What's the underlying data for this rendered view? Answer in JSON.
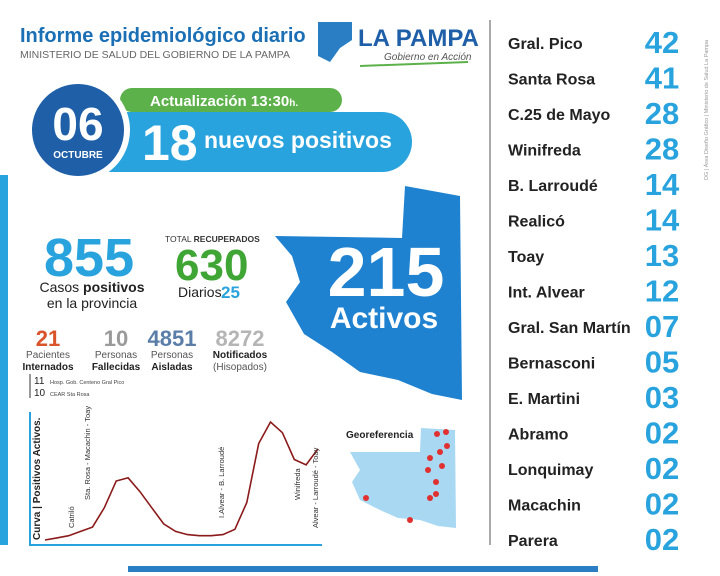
{
  "header": {
    "title": "Informe epidemiológico diario",
    "subtitle": "MINISTERIO DE SALUD DEL GOBIERNO DE LA PAMPA",
    "logo": "LA PAMPA",
    "logo_tagline": "Gobierno en Acción"
  },
  "date": {
    "day": "06",
    "month": "OCTUBRE"
  },
  "update": {
    "label": "Actualización 13:30",
    "suffix": "h."
  },
  "new_cases": {
    "value": "18",
    "label": "nuevos positivos"
  },
  "cases": {
    "value": "855",
    "label_bold": "positivos",
    "label_pre": "Casos",
    "label_line2": "en la provincia"
  },
  "recovered": {
    "label_pre": "TOTAL",
    "label_bold": "RECUPERADOS",
    "value": "630",
    "daily_label": "Diarios",
    "daily_value": "25"
  },
  "stats": [
    {
      "value": "21",
      "line1": "Pacientes",
      "line2": "Internados"
    },
    {
      "value": "10",
      "line1": "Personas",
      "line2": "Fallecidas"
    },
    {
      "value": "4851",
      "line1": "Personas",
      "line2": "Aisladas"
    },
    {
      "value": "8272",
      "line1": "Notificados",
      "line2": "(Hisopados)"
    }
  ],
  "hospitals": [
    {
      "value": "11",
      "label": "Hosp. Gob. Centeno Gral Pico"
    },
    {
      "value": "10",
      "label": "CEAR Sta Rosa"
    }
  ],
  "active": {
    "value": "215",
    "label": "Activos"
  },
  "curve": {
    "title": "Curva | Positivos Activos.",
    "annotations": [
      "Catriló",
      "Sta. Rosa - Macachin - Toay",
      "I.Alvear - B. Larroudé",
      "Winifreda",
      "Alvear - Larroudé - Toay"
    ],
    "values": [
      0,
      2,
      4,
      8,
      12,
      30,
      55,
      58,
      45,
      30,
      15,
      8,
      5,
      4,
      4,
      5,
      10,
      35,
      90,
      110,
      100,
      75,
      70,
      85
    ]
  },
  "georef": {
    "title": "Georeferencia"
  },
  "localities": [
    {
      "name": "Gral. Pico",
      "count": "42"
    },
    {
      "name": "Santa Rosa",
      "count": "41"
    },
    {
      "name": "C.25 de Mayo",
      "count": "28"
    },
    {
      "name": "Winifreda",
      "count": "28"
    },
    {
      "name": "B. Larroudé",
      "count": "14"
    },
    {
      "name": "Realicó",
      "count": "14"
    },
    {
      "name": "Toay",
      "count": "13"
    },
    {
      "name": "Int. Alvear",
      "count": "12"
    },
    {
      "name": "Gral. San Martín",
      "count": "07"
    },
    {
      "name": "Bernasconi",
      "count": "05"
    },
    {
      "name": "E. Martini",
      "count": "03"
    },
    {
      "name": "Abramo",
      "count": "02"
    },
    {
      "name": "Lonquimay",
      "count": "02"
    },
    {
      "name": "Macachin",
      "count": "02"
    },
    {
      "name": "Parera",
      "count": "02"
    }
  ],
  "credit": "DG | Área Diseño Gráfico | Ministerio de Salud La Pampa"
}
